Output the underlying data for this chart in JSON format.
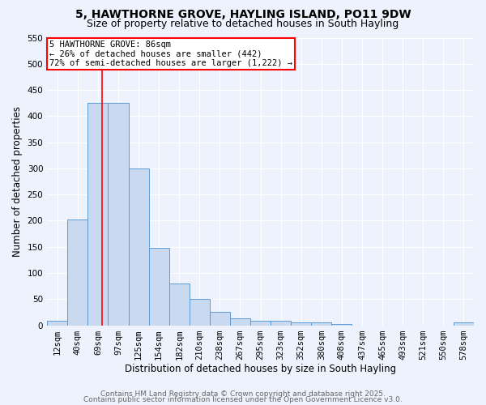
{
  "title": "5, HAWTHORNE GROVE, HAYLING ISLAND, PO11 9DW",
  "subtitle": "Size of property relative to detached houses in South Hayling",
  "xlabel": "Distribution of detached houses by size in South Hayling",
  "ylabel": "Number of detached properties",
  "bin_labels": [
    "12sqm",
    "40sqm",
    "69sqm",
    "97sqm",
    "125sqm",
    "154sqm",
    "182sqm",
    "210sqm",
    "238sqm",
    "267sqm",
    "295sqm",
    "323sqm",
    "352sqm",
    "380sqm",
    "408sqm",
    "437sqm",
    "465sqm",
    "493sqm",
    "521sqm",
    "550sqm",
    "578sqm"
  ],
  "bar_heights": [
    8,
    202,
    425,
    425,
    300,
    148,
    80,
    50,
    25,
    13,
    8,
    8,
    5,
    5,
    3,
    0,
    0,
    0,
    0,
    0,
    5
  ],
  "bar_color": "#c9d9f0",
  "bar_edge_color": "#5b9bd5",
  "vline_x": 2.2,
  "vline_color": "red",
  "annotation_text": "5 HAWTHORNE GROVE: 86sqm\n← 26% of detached houses are smaller (442)\n72% of semi-detached houses are larger (1,222) →",
  "annotation_box_color": "white",
  "annotation_box_edge_color": "red",
  "ylim": [
    0,
    550
  ],
  "yticks": [
    0,
    50,
    100,
    150,
    200,
    250,
    300,
    350,
    400,
    450,
    500,
    550
  ],
  "footer_line1": "Contains HM Land Registry data © Crown copyright and database right 2025.",
  "footer_line2": "Contains public sector information licensed under the Open Government Licence v3.0.",
  "background_color": "#eef2fc",
  "title_fontsize": 10,
  "subtitle_fontsize": 9,
  "axis_label_fontsize": 8.5,
  "tick_fontsize": 7.5,
  "annotation_fontsize": 7.5,
  "footer_fontsize": 6.5,
  "bar_width": 1.0
}
